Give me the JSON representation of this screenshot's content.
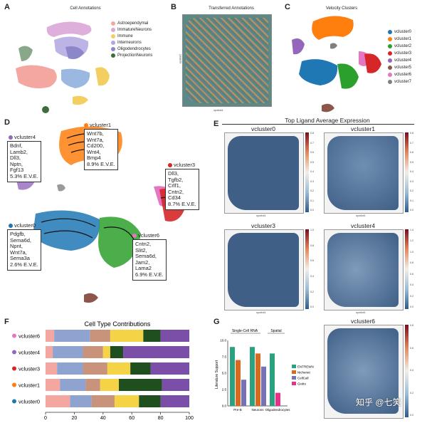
{
  "panels": {
    "a": {
      "letter": "A",
      "title": "Cell Annotations",
      "legend": [
        {
          "label": "Astroependymal",
          "color": "#f4a7a0"
        },
        {
          "label": "ImmatureNeurons",
          "color": "#d9a6d6"
        },
        {
          "label": "Immune",
          "color": "#f2cf60"
        },
        {
          "label": "Interneurons",
          "color": "#b3a6e0"
        },
        {
          "label": "Oligodendrocytes",
          "color": "#8b87c9"
        },
        {
          "label": "ProjectionNeurons",
          "color": "#3b6e3b"
        }
      ]
    },
    "b": {
      "letter": "B",
      "title": "Transferred Annotations",
      "xlabel": "spatial1",
      "ylabel": "spatial2"
    },
    "c": {
      "letter": "C",
      "title": "Velocity Clusters",
      "legend": [
        {
          "label": "vcluster0",
          "color": "#1f77b4"
        },
        {
          "label": "vcluster1",
          "color": "#ff7f0e"
        },
        {
          "label": "vcluster2",
          "color": "#2ca02c"
        },
        {
          "label": "vcluster3",
          "color": "#d62728"
        },
        {
          "label": "vcluster4",
          "color": "#9467bd"
        },
        {
          "label": "vcluster5",
          "color": "#8c564b"
        },
        {
          "label": "vcluster6",
          "color": "#e377c2"
        },
        {
          "label": "vcluster7",
          "color": "#7f7f7f"
        }
      ]
    },
    "d": {
      "letter": "D",
      "callouts": [
        {
          "name": "vcluster4",
          "color": "#9467bd",
          "lines": [
            "Bdnf,",
            "Lamb2,",
            "Dll3,",
            "Nptn,",
            "Fgf13",
            "5.3% E.V.E."
          ]
        },
        {
          "name": "vcluster1",
          "color": "#ff7f0e",
          "lines": [
            "Wnt7b,",
            "Wnt7a,",
            "Cd200,",
            "Wnt4,",
            "Bmp4",
            "8.9% E.V.E."
          ]
        },
        {
          "name": "vcluster3",
          "color": "#d62728",
          "lines": [
            "Dll3,",
            "Tgfb2,",
            "Crlf1,",
            "Cntn2,",
            "Cd34",
            "8.7% E.V.E."
          ]
        },
        {
          "name": "vcluster0",
          "color": "#1f77b4",
          "lines": [
            "Pdgfb,",
            "Sema6d,",
            "Npnt,",
            "Wnt7a,",
            "Sema3a",
            "2.6% E.V.E."
          ]
        },
        {
          "name": "vcluster6",
          "color": "#e377c2",
          "lines": [
            "Cntn2,",
            "Slit2,",
            "Sema6d,",
            "Jam2,",
            "Lama2",
            "6.9% E.V.E."
          ]
        }
      ]
    },
    "e": {
      "letter": "E",
      "title": "Top Ligand Average Expression",
      "subpanels": [
        {
          "title": "vcluster0",
          "ticks": [
            "0.8",
            "0.7",
            "0.6",
            "0.5",
            "0.4",
            "0.3",
            "0.2",
            "0.1",
            "0.0"
          ]
        },
        {
          "title": "vcluster1",
          "ticks": [
            "0.8",
            "0.7",
            "0.6",
            "0.5",
            "0.4",
            "0.3",
            "0.2",
            "0.1",
            "0.0"
          ]
        },
        {
          "title": "vcluster3",
          "ticks": [
            "1.0",
            "0.8",
            "0.6",
            "0.4",
            "0.2",
            "0.0"
          ]
        },
        {
          "title": "vcluster4",
          "ticks": [
            "1.4",
            "1.2",
            "1.0",
            "0.8",
            "0.6",
            "0.4",
            "0.2",
            "0.0"
          ]
        },
        {
          "title": "vcluster6",
          "ticks": [
            "0.8",
            "0.6",
            "0.4",
            "0.2",
            "0.0"
          ]
        }
      ],
      "axis_x": "spatial1",
      "axis_y": "spatial2"
    },
    "f": {
      "letter": "F"
    },
    "g": {
      "letter": "G"
    }
  },
  "watermark": "知乎 @七笑",
  "chart_data": [
    {
      "type": "bar",
      "orientation": "horizontal-stacked",
      "title": "Cell Type Contributions",
      "categories": [
        "vcluster6",
        "vcluster4",
        "vcluster3",
        "vcluster1",
        "vcluster0"
      ],
      "category_colors": [
        "#e377c2",
        "#9467bd",
        "#d62728",
        "#ff7f0e",
        "#1f77b4"
      ],
      "xlim": [
        0,
        100
      ],
      "xticks": [
        "0",
        "20",
        "40",
        "60",
        "80",
        "100"
      ],
      "series": [
        {
          "name": "Astroependymal",
          "color": "#f4a7a0",
          "values": [
            6,
            5,
            8,
            10,
            17
          ]
        },
        {
          "name": "ImmatureNeurons",
          "color": "#8ea3cf",
          "values": [
            25,
            21,
            18,
            18,
            15
          ]
        },
        {
          "name": "Interneurons",
          "color": "#c9927a",
          "values": [
            14,
            14,
            17,
            10,
            16
          ]
        },
        {
          "name": "Immune",
          "color": "#f5d347",
          "values": [
            23,
            5,
            16,
            13,
            17
          ]
        },
        {
          "name": "ProjectionNeurons",
          "color": "#1f4e1f",
          "values": [
            12,
            9,
            14,
            30,
            15
          ]
        },
        {
          "name": "Oligodendrocytes",
          "color": "#7b4fa8",
          "values": [
            20,
            46,
            27,
            19,
            20
          ]
        }
      ]
    },
    {
      "type": "bar",
      "title": "",
      "ylabel": "Literature Support",
      "group_labels": [
        "Single-Cell RNA",
        "Spatial"
      ],
      "categories": [
        "Pre-B",
        "Neurons",
        "Oligodendrocytes"
      ],
      "ylim": [
        0,
        10
      ],
      "yticks": [
        "0.0",
        "2.5",
        "5.0",
        "7.5",
        "10.0"
      ],
      "series": [
        {
          "name": "ENTREWN",
          "color": "#2aa27f",
          "values": [
            9,
            9,
            8
          ]
        },
        {
          "name": "Nichenet",
          "color": "#d86a1f",
          "values": [
            7,
            8,
            0
          ]
        },
        {
          "name": "CellCall",
          "color": "#7672b3",
          "values": [
            4,
            6,
            0
          ]
        },
        {
          "name": "Giotto",
          "color": "#e6308a",
          "values": [
            0,
            0,
            2
          ]
        }
      ]
    }
  ]
}
